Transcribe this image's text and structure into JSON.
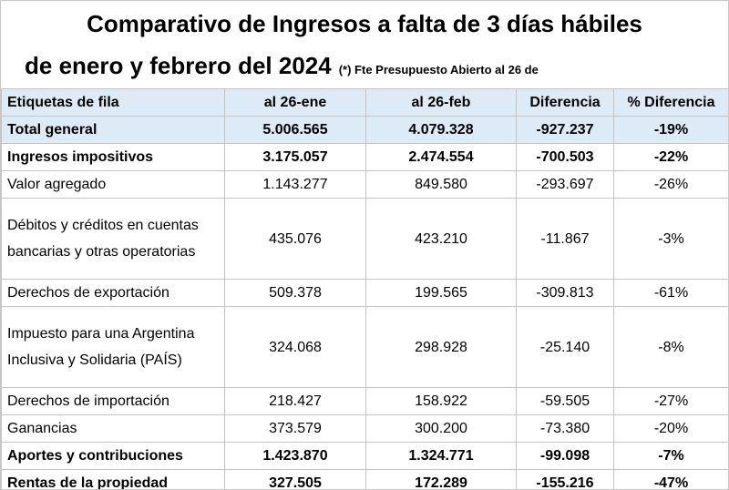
{
  "header": {
    "title_line1": "Comparativo de Ingresos a falta de 3 días hábiles",
    "title_line2": "de enero y febrero del 2024",
    "note": "(*) Fte Presupuesto Abierto al 26 de"
  },
  "table": {
    "columns": [
      "Etiquetas de fila",
      "al 26-ene",
      "al 26-feb",
      "Diferencia",
      "% Diferencia"
    ],
    "rows": [
      [
        "Total general",
        "5.006.565",
        "4.079.328",
        "-927.237",
        "-19%"
      ],
      [
        "Ingresos impositivos",
        "3.175.057",
        "2.474.554",
        "-700.503",
        "-22%"
      ],
      [
        "Valor agregado",
        "1.143.277",
        "849.580",
        "-293.697",
        "-26%"
      ],
      [
        "Débitos y créditos en cuentas bancarias y otras operatorias",
        "435.076",
        "423.210",
        "-11.867",
        "-3%"
      ],
      [
        "Derechos de exportación",
        "509.378",
        "199.565",
        "-309.813",
        "-61%"
      ],
      [
        "Impuesto para una Argentina Inclusiva y Solidaria (PAÍS)",
        "324.068",
        "298.928",
        "-25.140",
        "-8%"
      ],
      [
        "Derechos de importación",
        "218.427",
        "158.922",
        "-59.505",
        "-27%"
      ],
      [
        "Ganancias",
        "373.579",
        "300.200",
        "-73.380",
        "-20%"
      ],
      [
        "Aportes y contribuciones",
        "1.423.870",
        "1.324.771",
        "-99.098",
        "-7%"
      ],
      [
        "Rentas de la propiedad",
        "327.505",
        "172.289",
        "-155.216",
        "-47%"
      ]
    ]
  }
}
